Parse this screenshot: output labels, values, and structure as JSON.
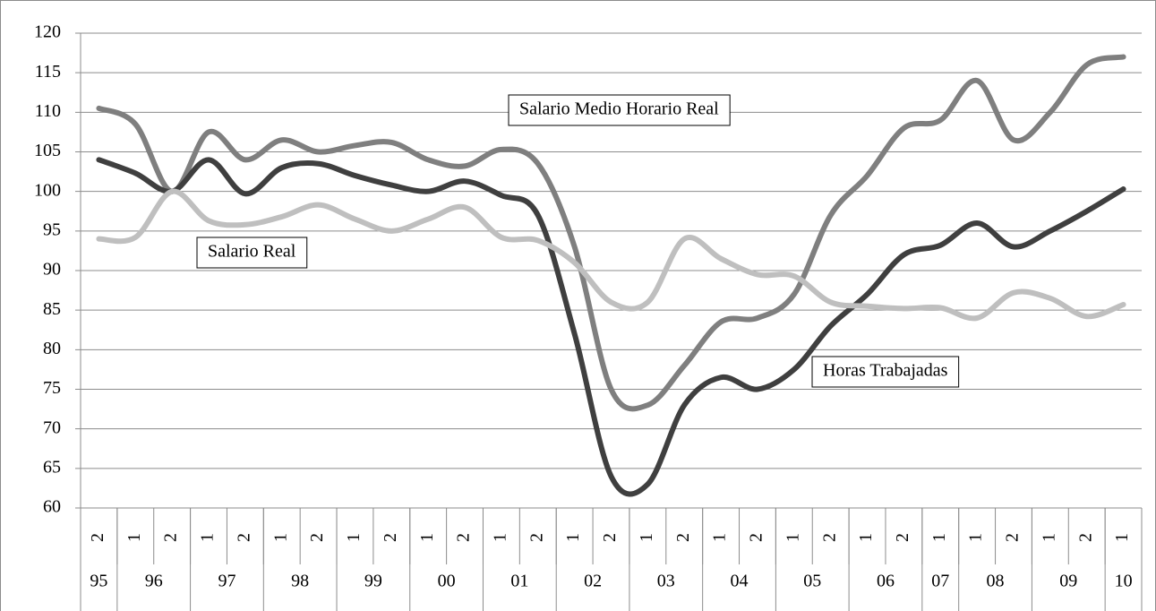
{
  "chart_data": {
    "type": "line",
    "categories": [
      "2",
      "1",
      "2",
      "1",
      "2",
      "1",
      "2",
      "1",
      "2",
      "1",
      "2",
      "1",
      "2",
      "1",
      "2",
      "1",
      "2",
      "1",
      "2",
      "1",
      "2",
      "1",
      "2",
      "1",
      "1",
      "2",
      "1",
      "2",
      "1"
    ],
    "year_groups": [
      {
        "label": "95",
        "count": 1
      },
      {
        "label": "96",
        "count": 2
      },
      {
        "label": "97",
        "count": 2
      },
      {
        "label": "98",
        "count": 2
      },
      {
        "label": "99",
        "count": 2
      },
      {
        "label": "00",
        "count": 2
      },
      {
        "label": "01",
        "count": 2
      },
      {
        "label": "02",
        "count": 2
      },
      {
        "label": "03",
        "count": 2
      },
      {
        "label": "04",
        "count": 2
      },
      {
        "label": "05",
        "count": 2
      },
      {
        "label": "06",
        "count": 2
      },
      {
        "label": "07",
        "count": 1
      },
      {
        "label": "08",
        "count": 2
      },
      {
        "label": "09",
        "count": 2
      },
      {
        "label": "10",
        "count": 1
      }
    ],
    "series": [
      {
        "name": "Salario Medio Horario Real",
        "color": "#7f7f7f",
        "values": [
          110.5,
          108.5,
          100,
          107.5,
          104,
          106.5,
          105,
          105.8,
          106.2,
          104,
          103.2,
          105.3,
          103.5,
          93,
          75,
          73,
          78,
          83.5,
          84,
          87,
          97,
          102,
          108,
          109,
          114,
          106.5,
          110,
          116,
          117
        ]
      },
      {
        "name": "Salario Real",
        "color": "#3f3f3f",
        "values": [
          104,
          102.3,
          100,
          104,
          99.7,
          103,
          103.5,
          102,
          100.8,
          100,
          101.3,
          99.5,
          97,
          82,
          64,
          63,
          73,
          76.5,
          75,
          77.5,
          83,
          87,
          92,
          93.2,
          96,
          93,
          95,
          97.5,
          100.3
        ]
      },
      {
        "name": "Horas Trabajadas",
        "color": "#bfbfbf",
        "values": [
          94,
          94.2,
          100,
          96.3,
          95.8,
          96.8,
          98.3,
          96.5,
          95,
          96.5,
          98,
          94.2,
          93.8,
          91,
          86,
          86,
          94,
          91.5,
          89.5,
          89.3,
          86,
          85.5,
          85.2,
          85.3,
          84,
          87.2,
          86.5,
          84.2,
          85.7
        ]
      }
    ],
    "ylim": [
      60,
      120
    ],
    "yticks": [
      60,
      65,
      70,
      75,
      80,
      85,
      90,
      95,
      100,
      105,
      110,
      115,
      120
    ],
    "grid": true
  }
}
